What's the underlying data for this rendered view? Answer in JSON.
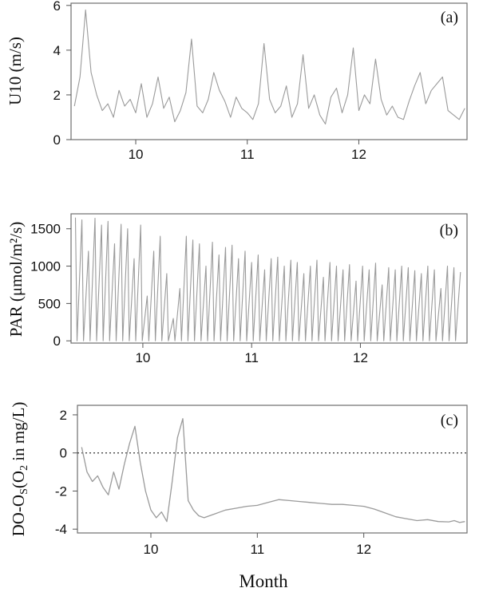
{
  "chart_data": [
    {
      "type": "line",
      "panel_label": "(a)",
      "ylabel": "U10 (m/s)",
      "yticks": [
        "0",
        "2",
        "4",
        "6"
      ],
      "ylim": [
        0,
        6.1
      ],
      "xticks": [
        "10",
        "11",
        "12"
      ],
      "xlim": [
        9.42,
        12.97
      ],
      "series": [
        {
          "color": "#9a9a9a",
          "x": [
            9.45,
            9.5,
            9.55,
            9.6,
            9.65,
            9.7,
            9.75,
            9.8,
            9.85,
            9.9,
            9.95,
            10.0,
            10.05,
            10.1,
            10.15,
            10.2,
            10.25,
            10.3,
            10.35,
            10.4,
            10.45,
            10.5,
            10.55,
            10.6,
            10.65,
            10.7,
            10.75,
            10.8,
            10.85,
            10.9,
            10.95,
            11.0,
            11.05,
            11.1,
            11.15,
            11.2,
            11.25,
            11.3,
            11.35,
            11.4,
            11.45,
            11.5,
            11.55,
            11.6,
            11.65,
            11.7,
            11.75,
            11.8,
            11.85,
            11.9,
            11.95,
            12.0,
            12.05,
            12.1,
            12.15,
            12.2,
            12.25,
            12.3,
            12.35,
            12.4,
            12.45,
            12.5,
            12.55,
            12.6,
            12.65,
            12.7,
            12.75,
            12.8,
            12.85,
            12.9,
            12.95
          ],
          "y": [
            1.5,
            2.8,
            5.8,
            3.0,
            2.0,
            1.3,
            1.6,
            1.0,
            2.2,
            1.5,
            1.8,
            1.2,
            2.5,
            1.0,
            1.6,
            2.8,
            1.4,
            1.9,
            0.8,
            1.3,
            2.1,
            4.5,
            1.5,
            1.2,
            1.8,
            3.0,
            2.2,
            1.7,
            1.0,
            1.9,
            1.4,
            1.2,
            0.9,
            1.6,
            4.3,
            1.8,
            1.2,
            1.5,
            2.4,
            1.0,
            1.6,
            3.8,
            1.4,
            2.0,
            1.1,
            0.7,
            1.9,
            2.3,
            1.2,
            2.0,
            4.1,
            1.3,
            2.0,
            1.6,
            3.6,
            1.8,
            1.1,
            1.5,
            1.0,
            0.9,
            1.7,
            2.4,
            3.0,
            1.6,
            2.2,
            2.5,
            2.8,
            1.3,
            1.1,
            0.9,
            1.4
          ]
        }
      ]
    },
    {
      "type": "line",
      "panel_label": "(b)",
      "ylabel": "PAR (μmol/m²/s)",
      "yticks": [
        "0",
        "500",
        "1000",
        "1500"
      ],
      "ylim": [
        -30,
        1700
      ],
      "xticks": [
        "10",
        "11",
        "12"
      ],
      "xlim": [
        9.34,
        12.98
      ],
      "series": [
        {
          "color": "#9a9a9a",
          "x": [
            9.38,
            9.44,
            9.5,
            9.56,
            9.62,
            9.68,
            9.74,
            9.8,
            9.86,
            9.92,
            9.98,
            10.04,
            10.1,
            10.16,
            10.22,
            10.28,
            10.34,
            10.4,
            10.46,
            10.52,
            10.58,
            10.64,
            10.7,
            10.76,
            10.82,
            10.88,
            10.94,
            11.0,
            11.06,
            11.12,
            11.18,
            11.24,
            11.3,
            11.36,
            11.42,
            11.48,
            11.54,
            11.6,
            11.66,
            11.72,
            11.78,
            11.84,
            11.9,
            11.96,
            12.02,
            12.08,
            12.14,
            12.2,
            12.26,
            12.32,
            12.38,
            12.44,
            12.5,
            12.56,
            12.62,
            12.68,
            12.74,
            12.8,
            12.86,
            12.92
          ],
          "y": [
            1650,
            1620,
            1200,
            1640,
            1550,
            1600,
            1300,
            1560,
            1500,
            1100,
            1550,
            600,
            1200,
            1400,
            900,
            300,
            700,
            1400,
            1350,
            1300,
            1000,
            1320,
            1150,
            1250,
            1280,
            1100,
            1200,
            1050,
            1150,
            950,
            1100,
            1120,
            1000,
            1080,
            1050,
            900,
            1000,
            1080,
            850,
            1050,
            1000,
            950,
            1020,
            800,
            1000,
            950,
            1040,
            750,
            980,
            950,
            1000,
            980,
            940,
            900,
            1000,
            950,
            700,
            1000,
            980,
            920
          ]
        }
      ]
    },
    {
      "type": "line",
      "panel_label": "(c)",
      "ylabel": "DO-Os(O2 in mg/L)",
      "ylabel_parts": {
        "lead": "DO-O",
        "sub1": "S",
        "mid": "(O",
        "sub2": "2",
        "tail": " in mg/L)"
      },
      "yticks": [
        "2",
        "0",
        "-2",
        "-4"
      ],
      "ylim": [
        -4.2,
        2.5
      ],
      "xticks": [
        "10",
        "11",
        "12"
      ],
      "xlim": [
        9.31,
        12.97
      ],
      "reference_line_y": 0,
      "series": [
        {
          "color": "#9a9a9a",
          "x": [
            9.35,
            9.4,
            9.45,
            9.5,
            9.55,
            9.6,
            9.65,
            9.7,
            9.75,
            9.8,
            9.85,
            9.9,
            9.95,
            10.0,
            10.05,
            10.1,
            10.15,
            10.2,
            10.25,
            10.3,
            10.35,
            10.4,
            10.45,
            10.5,
            10.55,
            10.6,
            10.65,
            10.7,
            10.8,
            10.9,
            11.0,
            11.1,
            11.2,
            11.3,
            11.4,
            11.5,
            11.6,
            11.7,
            11.8,
            11.9,
            12.0,
            12.1,
            12.2,
            12.3,
            12.4,
            12.5,
            12.6,
            12.7,
            12.8,
            12.85,
            12.9,
            12.95
          ],
          "y": [
            0.3,
            -1.0,
            -1.5,
            -1.2,
            -1.8,
            -2.2,
            -1.0,
            -1.9,
            -0.6,
            0.5,
            1.4,
            -0.5,
            -2.0,
            -3.0,
            -3.4,
            -3.1,
            -3.6,
            -1.5,
            0.8,
            1.8,
            -2.5,
            -3.0,
            -3.3,
            -3.4,
            -3.3,
            -3.2,
            -3.1,
            -3.0,
            -2.9,
            -2.8,
            -2.75,
            -2.6,
            -2.45,
            -2.5,
            -2.55,
            -2.6,
            -2.65,
            -2.7,
            -2.7,
            -2.75,
            -2.8,
            -2.95,
            -3.15,
            -3.35,
            -3.45,
            -3.55,
            -3.5,
            -3.6,
            -3.62,
            -3.55,
            -3.65,
            -3.6
          ]
        }
      ]
    }
  ],
  "x_axis_title": "Month"
}
